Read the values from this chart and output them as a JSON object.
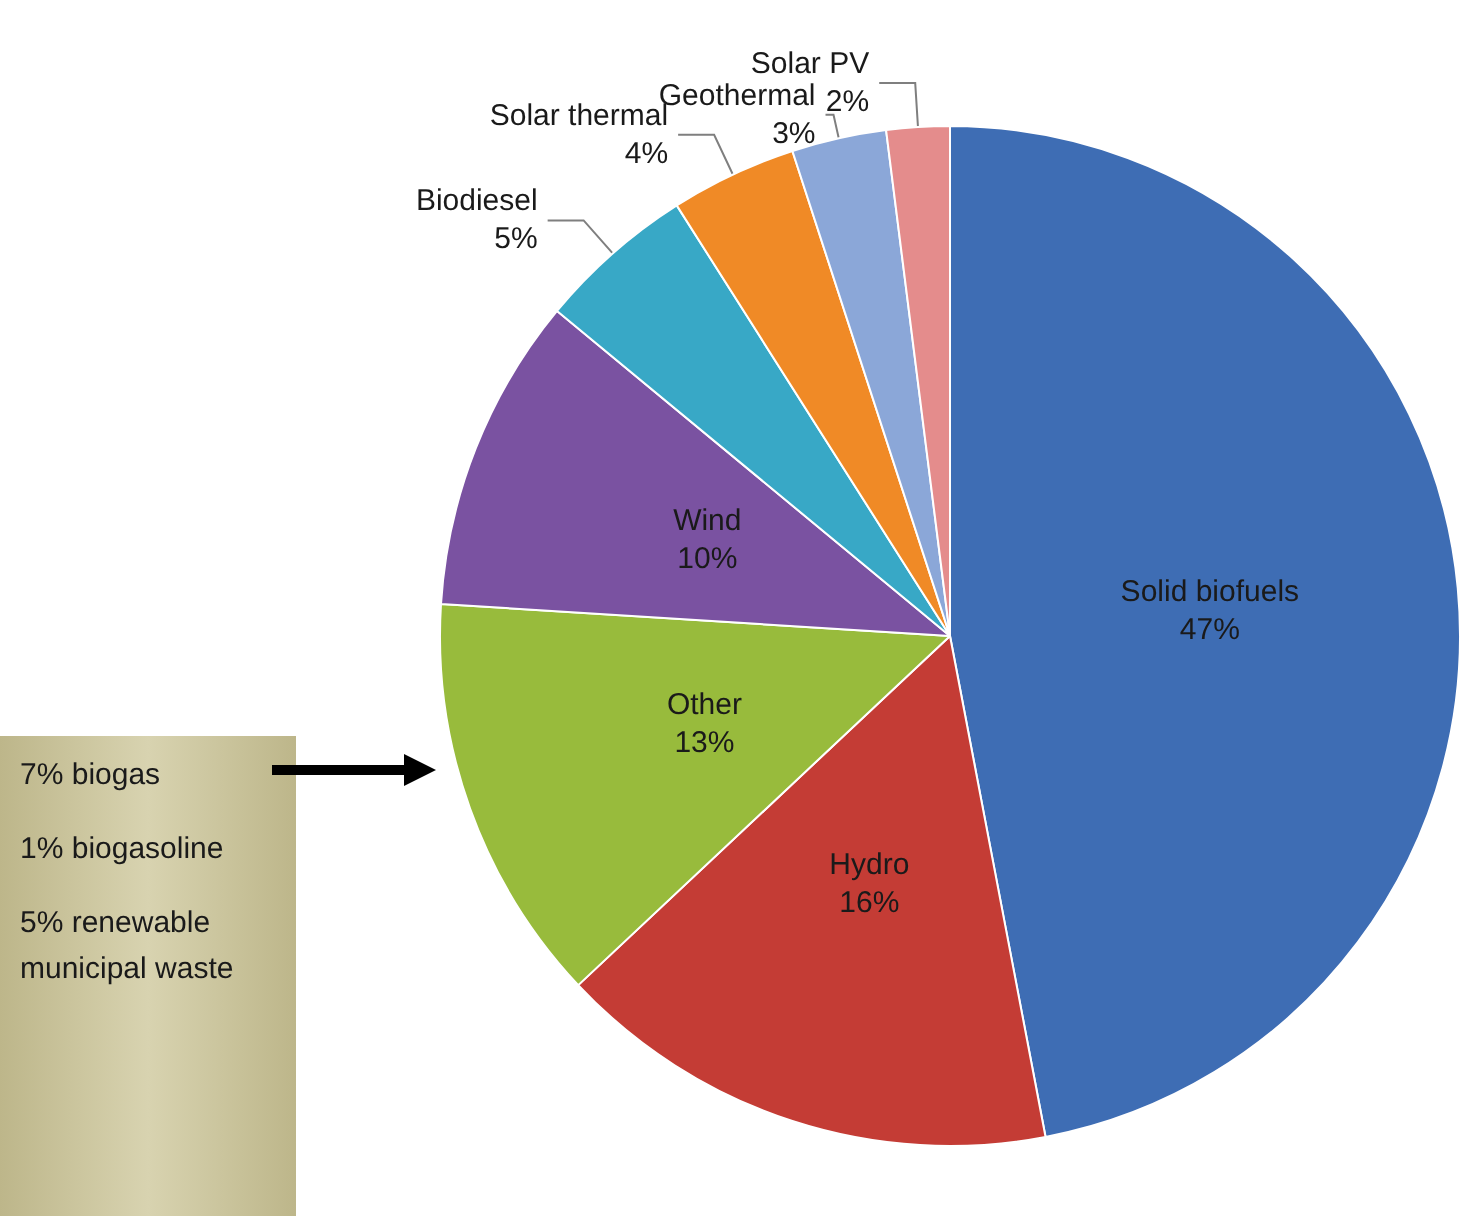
{
  "chart_data": {
    "type": "pie",
    "categories": [
      "Solid biofuels",
      "Hydro",
      "Other",
      "Wind",
      "Biodiesel",
      "Solar thermal",
      "Geothermal",
      "Solar PV"
    ],
    "values": [
      47,
      16,
      13,
      10,
      5,
      4,
      3,
      2
    ],
    "value_labels": [
      "47%",
      "16%",
      "13%",
      "10%",
      "5%",
      "4%",
      "3%",
      "2%"
    ],
    "colors": [
      "#3e6db4",
      "#c43c35",
      "#98bb3c",
      "#7a52a1",
      "#38a8c6",
      "#f08a26",
      "#8ba7d8",
      "#e48c8c"
    ],
    "annotations": [
      "7% biogas",
      "1% biogasoline",
      "5% renewable municipal waste"
    ],
    "legend": false
  }
}
